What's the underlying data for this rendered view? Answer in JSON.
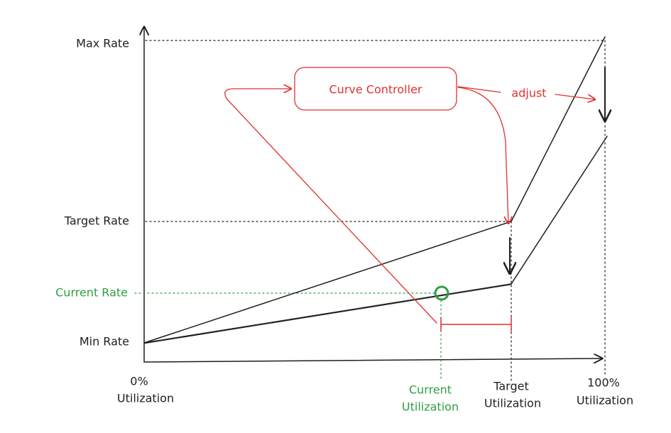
{
  "y_labels": {
    "max_rate": "Max Rate",
    "target_rate": "Target Rate",
    "current_rate": "Current Rate",
    "min_rate": "Min Rate"
  },
  "x_labels": {
    "zero": [
      "0%",
      "Utilization"
    ],
    "current": [
      "Current",
      "Utilization"
    ],
    "target": [
      "Target",
      "Utilization"
    ],
    "full": [
      "100%",
      "Utilization"
    ]
  },
  "controller": {
    "label": "Curve Controller",
    "action": "adjust"
  }
}
